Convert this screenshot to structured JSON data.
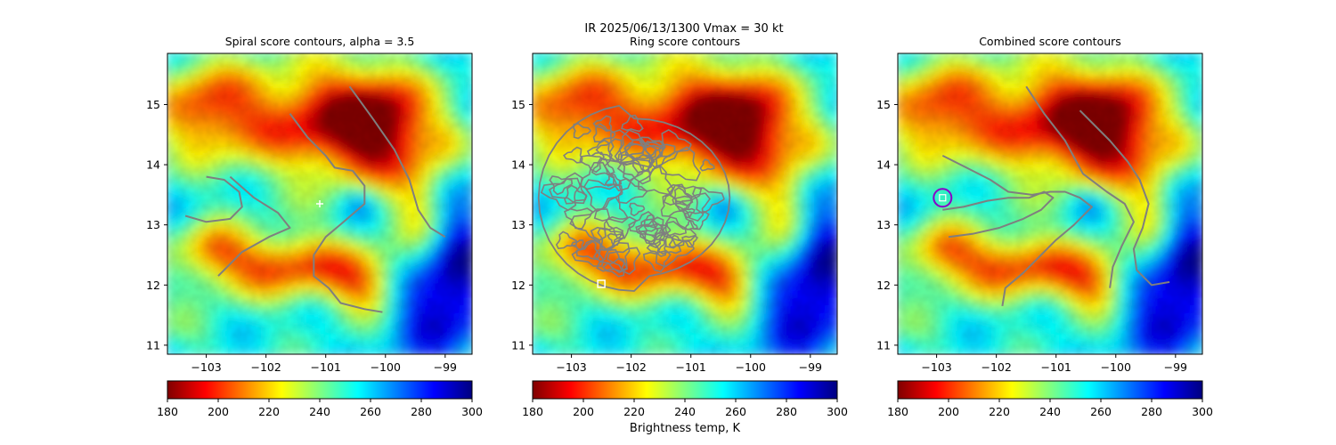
{
  "suptitle": "IR  2025/06/13/1300    Vmax = 30 kt",
  "colorbar_label": "Brightness temp, K",
  "colors": {
    "contour": "#7f7f7f",
    "spiral_marker": "#ffffff",
    "ring_marker": "#ffffff",
    "combined_marker": "#8a00c8",
    "background": "#ffffff"
  },
  "colormap": {
    "name": "jet_r",
    "stops": [
      {
        "value": 180,
        "color": "#800000"
      },
      {
        "value": 195,
        "color": "#ff0000"
      },
      {
        "value": 210,
        "color": "#ff8000"
      },
      {
        "value": 225,
        "color": "#ffff00"
      },
      {
        "value": 240,
        "color": "#80ff80"
      },
      {
        "value": 255,
        "color": "#00ffff"
      },
      {
        "value": 270,
        "color": "#0080ff"
      },
      {
        "value": 285,
        "color": "#0000ff"
      },
      {
        "value": 300,
        "color": "#000080"
      }
    ]
  },
  "chart_data": [
    {
      "type": "heatmap",
      "id": "spiral",
      "title": "Spiral score contours, alpha =  3.5",
      "xlim": [
        -103.65,
        -98.55
      ],
      "ylim": [
        10.85,
        15.85
      ],
      "xticks": [
        -103,
        -102,
        -101,
        -100,
        -99
      ],
      "xtick_labels": [
        "−103",
        "−102",
        "−101",
        "−100",
        "−99"
      ],
      "yticks": [
        11,
        12,
        13,
        14,
        15
      ],
      "ytick_labels": [
        "11",
        "12",
        "13",
        "14",
        "15"
      ],
      "colorbar": {
        "min": 180,
        "max": 300,
        "ticks": [
          180,
          200,
          220,
          240,
          260,
          280,
          300
        ],
        "tick_labels": [
          "180",
          "200",
          "220",
          "240",
          "260",
          "280",
          "300"
        ]
      },
      "marker": {
        "shape": "plus",
        "lon": -101.1,
        "lat": 13.35
      },
      "contours": [
        [
          [
            -103.0,
            13.8
          ],
          [
            -102.7,
            13.75
          ],
          [
            -102.45,
            13.55
          ],
          [
            -102.4,
            13.3
          ],
          [
            -102.6,
            13.1
          ],
          [
            -103.0,
            13.05
          ],
          [
            -103.35,
            13.15
          ]
        ],
        [
          [
            -102.6,
            13.8
          ],
          [
            -102.2,
            13.45
          ],
          [
            -101.8,
            13.2
          ],
          [
            -101.6,
            12.95
          ],
          [
            -101.95,
            12.8
          ],
          [
            -102.4,
            12.55
          ],
          [
            -102.8,
            12.15
          ]
        ],
        [
          [
            -101.6,
            14.85
          ],
          [
            -101.3,
            14.45
          ],
          [
            -101.0,
            14.15
          ],
          [
            -100.85,
            13.95
          ],
          [
            -100.55,
            13.9
          ],
          [
            -100.35,
            13.65
          ],
          [
            -100.35,
            13.35
          ],
          [
            -100.7,
            13.05
          ],
          [
            -101.0,
            12.8
          ],
          [
            -101.2,
            12.5
          ],
          [
            -101.2,
            12.15
          ],
          [
            -100.95,
            11.95
          ],
          [
            -100.75,
            11.7
          ],
          [
            -100.35,
            11.6
          ],
          [
            -100.05,
            11.55
          ]
        ],
        [
          [
            -100.6,
            15.3
          ],
          [
            -100.2,
            14.75
          ],
          [
            -99.85,
            14.25
          ],
          [
            -99.6,
            13.75
          ],
          [
            -99.45,
            13.25
          ],
          [
            -99.25,
            12.95
          ],
          [
            -99.0,
            12.8
          ]
        ]
      ]
    },
    {
      "type": "heatmap",
      "id": "ring",
      "title": "Ring score contours",
      "xlim": [
        -103.65,
        -98.55
      ],
      "ylim": [
        10.85,
        15.85
      ],
      "xticks": [
        -103,
        -102,
        -101,
        -100,
        -99
      ],
      "xtick_labels": [
        "−103",
        "−102",
        "−101",
        "−100",
        "−99"
      ],
      "yticks": [
        11,
        12,
        13,
        14,
        15
      ],
      "ytick_labels": [
        "11",
        "12",
        "13",
        "14",
        "15"
      ],
      "colorbar": {
        "min": 180,
        "max": 300,
        "ticks": [
          180,
          200,
          220,
          240,
          260,
          280,
          300
        ],
        "tick_labels": [
          "180",
          "200",
          "220",
          "240",
          "260",
          "280",
          "300"
        ]
      },
      "marker": {
        "shape": "square",
        "lon": -102.5,
        "lat": 12.02
      },
      "contour_region": {
        "center_lon": -101.95,
        "center_lat": 13.45,
        "semi_lon": 1.6,
        "semi_lat": 1.55
      }
    },
    {
      "type": "heatmap",
      "id": "combined",
      "title": "Combined score contours",
      "xlim": [
        -103.65,
        -98.55
      ],
      "ylim": [
        10.85,
        15.85
      ],
      "xticks": [
        -103,
        -102,
        -101,
        -100,
        -99
      ],
      "xtick_labels": [
        "−103",
        "−102",
        "−101",
        "−100",
        "−99"
      ],
      "yticks": [
        11,
        12,
        13,
        14,
        15
      ],
      "ytick_labels": [
        "11",
        "12",
        "13",
        "14",
        "15"
      ],
      "colorbar": {
        "min": 180,
        "max": 300,
        "ticks": [
          180,
          200,
          220,
          240,
          260,
          280,
          300
        ],
        "tick_labels": [
          "180",
          "200",
          "220",
          "240",
          "260",
          "280",
          "300"
        ]
      },
      "marker": {
        "shape": "circle",
        "lon": -102.9,
        "lat": 13.45
      },
      "contours": [
        [
          [
            -102.9,
            13.25
          ],
          [
            -102.55,
            13.3
          ],
          [
            -102.15,
            13.4
          ],
          [
            -101.8,
            13.45
          ],
          [
            -101.45,
            13.45
          ],
          [
            -101.2,
            13.55
          ],
          [
            -101.05,
            13.45
          ],
          [
            -101.25,
            13.25
          ],
          [
            -101.55,
            13.1
          ],
          [
            -101.95,
            12.95
          ],
          [
            -102.4,
            12.85
          ],
          [
            -102.8,
            12.8
          ]
        ],
        [
          [
            -102.9,
            14.15
          ],
          [
            -102.5,
            13.95
          ],
          [
            -102.1,
            13.75
          ],
          [
            -101.8,
            13.55
          ],
          [
            -101.4,
            13.5
          ],
          [
            -101.1,
            13.55
          ],
          [
            -100.85,
            13.55
          ],
          [
            -100.6,
            13.45
          ],
          [
            -100.4,
            13.3
          ],
          [
            -100.7,
            13.0
          ],
          [
            -101.0,
            12.75
          ],
          [
            -101.3,
            12.45
          ],
          [
            -101.55,
            12.2
          ],
          [
            -101.85,
            11.95
          ],
          [
            -101.9,
            11.65
          ]
        ],
        [
          [
            -101.5,
            15.3
          ],
          [
            -101.2,
            14.85
          ],
          [
            -100.85,
            14.4
          ],
          [
            -100.55,
            13.85
          ],
          [
            -100.15,
            13.55
          ],
          [
            -99.85,
            13.35
          ],
          [
            -99.7,
            13.05
          ],
          [
            -99.9,
            12.65
          ],
          [
            -100.05,
            12.3
          ],
          [
            -100.1,
            11.95
          ]
        ],
        [
          [
            -100.6,
            14.9
          ],
          [
            -100.1,
            14.4
          ],
          [
            -99.8,
            14.05
          ],
          [
            -99.6,
            13.75
          ],
          [
            -99.45,
            13.35
          ],
          [
            -99.55,
            12.95
          ],
          [
            -99.7,
            12.6
          ],
          [
            -99.65,
            12.25
          ],
          [
            -99.4,
            12.0
          ],
          [
            -99.1,
            12.05
          ]
        ]
      ]
    }
  ]
}
